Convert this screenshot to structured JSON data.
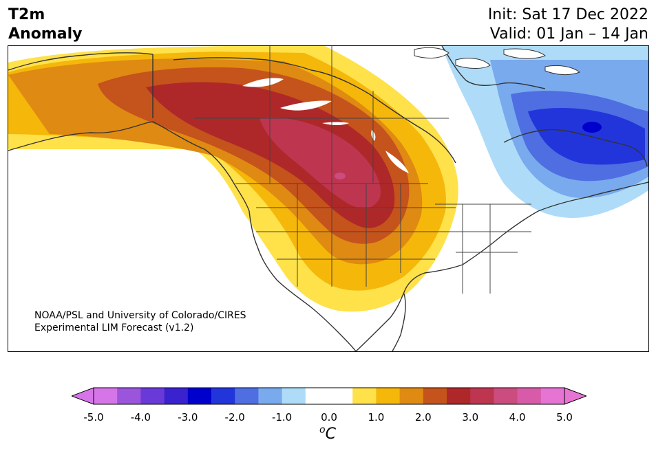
{
  "title": {
    "variable": "T2m",
    "subvariable": "Anomaly",
    "init": "Init: Sat 17 Dec 2022",
    "valid": "Valid: 01 Jan – 14 Jan"
  },
  "credit": {
    "line1": "NOAA/PSL and University of Colorado/CIRES",
    "line2": "Experimental LIM Forecast (v1.2)"
  },
  "colorbar": {
    "unit": "°C",
    "ticks": [
      "-5.0",
      "-4.0",
      "-3.0",
      "-2.0",
      "-1.0",
      "0.0",
      "1.0",
      "2.0",
      "3.0",
      "4.0",
      "5.0"
    ],
    "colors": [
      "#d675e8",
      "#9b55dd",
      "#6a3ad8",
      "#3b22cf",
      "#0000cc",
      "#2235da",
      "#4e6ee2",
      "#79aaee",
      "#aedcf8",
      "#ffffff",
      "#ffffff",
      "#ffe14a",
      "#f5b70a",
      "#df8a12",
      "#c5531c",
      "#ae2829",
      "#be3550",
      "#cb4c7e",
      "#d75ba8",
      "#e674d2"
    ],
    "extend_low": "#d675e8",
    "extend_high": "#e674d2"
  },
  "map": {
    "region": "North America",
    "warm_anomaly_center": "Canadian Prairies",
    "cold_anomaly_center": "Northern Quebec / Labrador"
  }
}
